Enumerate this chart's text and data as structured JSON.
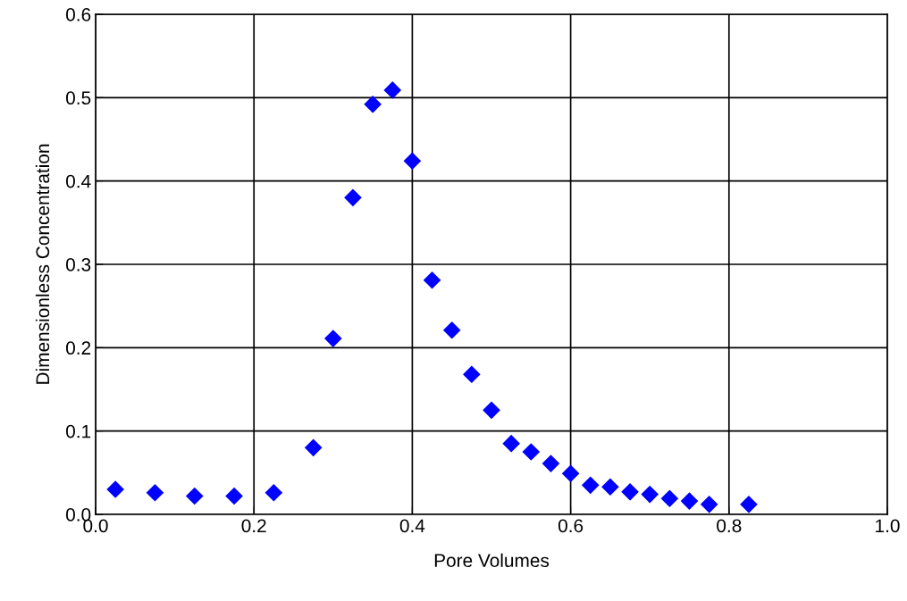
{
  "chart_data": {
    "type": "scatter",
    "xlabel": "Pore Volumes",
    "ylabel": "Dimensionless Concentration",
    "x": [
      0.025,
      0.075,
      0.125,
      0.175,
      0.225,
      0.275,
      0.3,
      0.325,
      0.35,
      0.375,
      0.4,
      0.425,
      0.45,
      0.475,
      0.5,
      0.525,
      0.55,
      0.575,
      0.6,
      0.625,
      0.65,
      0.675,
      0.7,
      0.725,
      0.75,
      0.775,
      0.825
    ],
    "series": [
      {
        "color": "#0000ff",
        "values": [
          0.03,
          0.026,
          0.022,
          0.022,
          0.026,
          0.08,
          0.211,
          0.38,
          0.492,
          0.509,
          0.424,
          0.281,
          0.221,
          0.168,
          0.125,
          0.085,
          0.075,
          0.061,
          0.049,
          0.035,
          0.033,
          0.027,
          0.024,
          0.019,
          0.016,
          0.012,
          0.012
        ]
      }
    ],
    "marker": "diamond",
    "grid": true,
    "xlim": [
      0,
      1
    ],
    "xticks": [
      {
        "value": 0,
        "label": "0.0"
      },
      0.2,
      0.4,
      0.6,
      0.8,
      {
        "value": 1,
        "label": "1.0"
      }
    ],
    "ylim": [
      0,
      0.6
    ],
    "yticks": [
      {
        "value": 0,
        "label": "0.0"
      },
      0.1,
      0.2,
      0.3,
      0.4,
      0.5,
      0.6
    ]
  }
}
